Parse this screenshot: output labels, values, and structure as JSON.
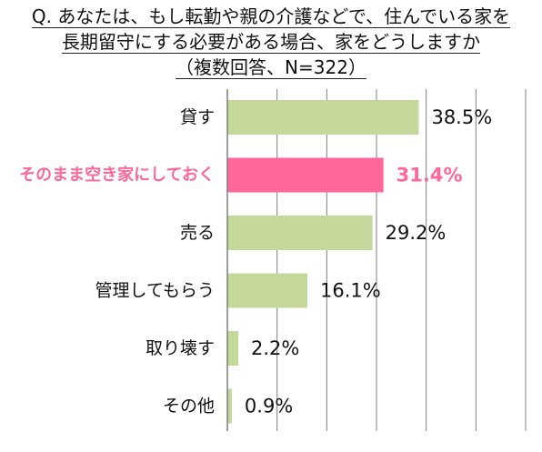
{
  "title_lines": [
    "Q. あなたは、もし転勤や親の介護などで、住んでいる家を",
    "長期留守にする必要がある場合、家をどうしますか",
    "（複数回答、N=322）"
  ],
  "chart_data": {
    "type": "bar",
    "orientation": "horizontal",
    "categories": [
      "貸す",
      "そのまま空き家にしておく",
      "売る",
      "管理してもらう",
      "取り壊す",
      "その他"
    ],
    "values": [
      38.5,
      31.4,
      29.2,
      16.1,
      2.2,
      0.9
    ],
    "value_labels": [
      "38.5%",
      "31.4%",
      "29.2%",
      "16.1%",
      "2.2%",
      "0.9%"
    ],
    "highlight_index": 1,
    "colors": {
      "bar": "#c5d89b",
      "highlight": "#ff6699",
      "grid": "#7f7f7f",
      "label": "#111111"
    },
    "xlim": [
      0,
      60
    ],
    "grid": true
  }
}
